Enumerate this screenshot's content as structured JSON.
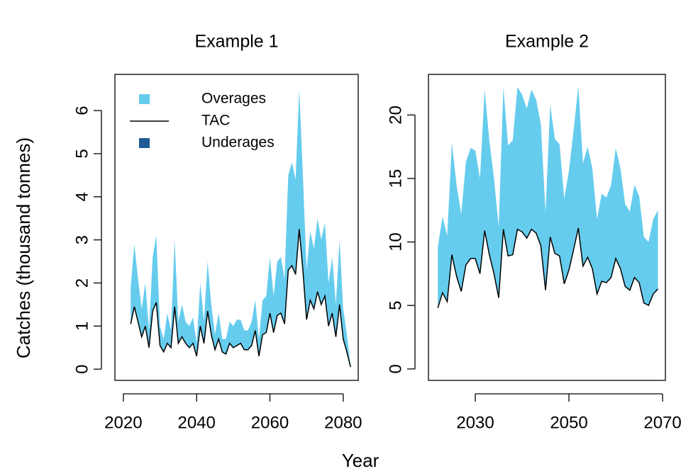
{
  "ylabel": "Catches (thousand tonnes)",
  "xlabel": "Year",
  "chart_data": [
    {
      "type": "area",
      "title": "Example 1",
      "legend": "topleft",
      "x": [
        2022,
        2023,
        2024,
        2025,
        2026,
        2027,
        2028,
        2029,
        2030,
        2031,
        2032,
        2033,
        2034,
        2035,
        2036,
        2037,
        2038,
        2039,
        2040,
        2041,
        2042,
        2043,
        2044,
        2045,
        2046,
        2047,
        2048,
        2049,
        2050,
        2051,
        2052,
        2053,
        2054,
        2055,
        2056,
        2057,
        2058,
        2059,
        2060,
        2061,
        2062,
        2063,
        2064,
        2065,
        2066,
        2067,
        2068,
        2069,
        2070,
        2071,
        2072,
        2073,
        2074,
        2075,
        2076,
        2077,
        2078,
        2079,
        2080,
        2081,
        2082
      ],
      "series": [
        {
          "name": "Overages",
          "color": "#66ccee",
          "stack_on": "TAC",
          "values": [
            0.85,
            1.45,
            1.0,
            0.65,
            1.0,
            0.4,
            1.25,
            1.55,
            0.45,
            0.3,
            0.7,
            0.4,
            1.55,
            0.5,
            0.75,
            0.5,
            0.5,
            0.6,
            0.3,
            1.0,
            0.5,
            1.15,
            0.7,
            0.35,
            0.6,
            0.3,
            0.35,
            0.5,
            0.5,
            0.6,
            0.55,
            0.45,
            0.45,
            0.55,
            0.7,
            0.4,
            0.8,
            0.85,
            1.3,
            0.85,
            1.25,
            1.3,
            1.05,
            2.2,
            2.4,
            2.2,
            3.25,
            2.2,
            1.15,
            1.6,
            1.4,
            1.7,
            1.5,
            1.7,
            1.0,
            1.3,
            0.75,
            1.5,
            0.7,
            0.4,
            0.05
          ]
        },
        {
          "name": "TAC",
          "color": "#000000",
          "values": [
            1.05,
            1.45,
            1.1,
            0.75,
            1.0,
            0.5,
            1.35,
            1.55,
            0.55,
            0.4,
            0.6,
            0.5,
            1.45,
            0.6,
            0.75,
            0.6,
            0.5,
            0.6,
            0.3,
            1.0,
            0.6,
            1.35,
            0.8,
            0.45,
            0.7,
            0.4,
            0.35,
            0.6,
            0.5,
            0.55,
            0.6,
            0.45,
            0.45,
            0.55,
            0.9,
            0.3,
            0.8,
            0.85,
            1.3,
            0.85,
            1.25,
            1.3,
            1.05,
            2.3,
            2.4,
            2.2,
            3.25,
            2.3,
            1.15,
            1.6,
            1.4,
            1.8,
            1.5,
            1.7,
            1.0,
            1.3,
            0.75,
            1.5,
            0.7,
            0.4,
            0.05
          ]
        },
        {
          "name": "Underages",
          "color": "#1f5a96",
          "stack_under": "TAC",
          "values": [
            0,
            0,
            0,
            0,
            0,
            0,
            0,
            0,
            0,
            0,
            0,
            0,
            0,
            0,
            0,
            0,
            0,
            0,
            0,
            0,
            0,
            0,
            0,
            0,
            0,
            0,
            0,
            0,
            0,
            0,
            0,
            0,
            0,
            0,
            0,
            0,
            0,
            0,
            0,
            0,
            0,
            0,
            0,
            0,
            0,
            0,
            0,
            0,
            0,
            0,
            0,
            0,
            0,
            0,
            0,
            0,
            0,
            0,
            0,
            0,
            0
          ]
        }
      ],
      "xlim": [
        2017.7,
        2084.1
      ],
      "xticks": [
        2020,
        2040,
        2060,
        2080
      ],
      "ylim": [
        -0.26,
        6.84
      ],
      "yticks": [
        0,
        1,
        2,
        3,
        4,
        5,
        6
      ]
    },
    {
      "type": "area",
      "title": "Example 2",
      "x": [
        2022,
        2023,
        2024,
        2025,
        2026,
        2027,
        2028,
        2029,
        2030,
        2031,
        2032,
        2033,
        2034,
        2035,
        2036,
        2037,
        2038,
        2039,
        2040,
        2041,
        2042,
        2043,
        2044,
        2045,
        2046,
        2047,
        2048,
        2049,
        2050,
        2051,
        2052,
        2053,
        2054,
        2055,
        2056,
        2057,
        2058,
        2059,
        2060,
        2061,
        2062,
        2063,
        2064,
        2065,
        2066,
        2067,
        2068,
        2069
      ],
      "series": [
        {
          "name": "Overages",
          "color": "#66ccee",
          "stack_on": "TAC",
          "values": [
            4.8,
            6.0,
            5.2,
            8.8,
            7.2,
            6.1,
            8.1,
            8.7,
            8.5,
            7.5,
            11.1,
            9.0,
            7.5,
            5.6,
            11.2,
            8.7,
            9.0,
            11.2,
            10.8,
            10.2,
            11.0,
            10.5,
            9.6,
            6.1,
            10.4,
            9.0,
            8.8,
            6.7,
            7.8,
            9.4,
            11.2,
            8.1,
            8.7,
            7.9,
            5.9,
            6.9,
            6.7,
            7.3,
            8.7,
            7.9,
            6.5,
            6.2,
            7.3,
            6.8,
            5.2,
            5.0,
            5.9,
            6.2
          ]
        },
        {
          "name": "TAC",
          "color": "#000000",
          "values": [
            4.8,
            6.0,
            5.3,
            9.0,
            7.3,
            6.1,
            8.2,
            8.7,
            8.7,
            7.5,
            10.9,
            9.0,
            7.5,
            5.6,
            11.0,
            8.9,
            9.0,
            11.0,
            10.8,
            10.3,
            11.0,
            10.7,
            9.7,
            6.2,
            10.4,
            9.1,
            8.9,
            6.7,
            7.8,
            9.4,
            11.1,
            8.1,
            8.8,
            7.9,
            5.9,
            6.9,
            6.8,
            7.2,
            8.7,
            7.9,
            6.5,
            6.2,
            7.2,
            6.8,
            5.2,
            5.0,
            5.9,
            6.3
          ]
        }
      ],
      "xlim": [
        2020.0,
        2070.6
      ],
      "xticks": [
        2030,
        2050,
        2070
      ],
      "ylim": [
        -0.9,
        23.2
      ],
      "yticks": [
        0,
        5,
        10,
        15,
        20
      ]
    }
  ]
}
